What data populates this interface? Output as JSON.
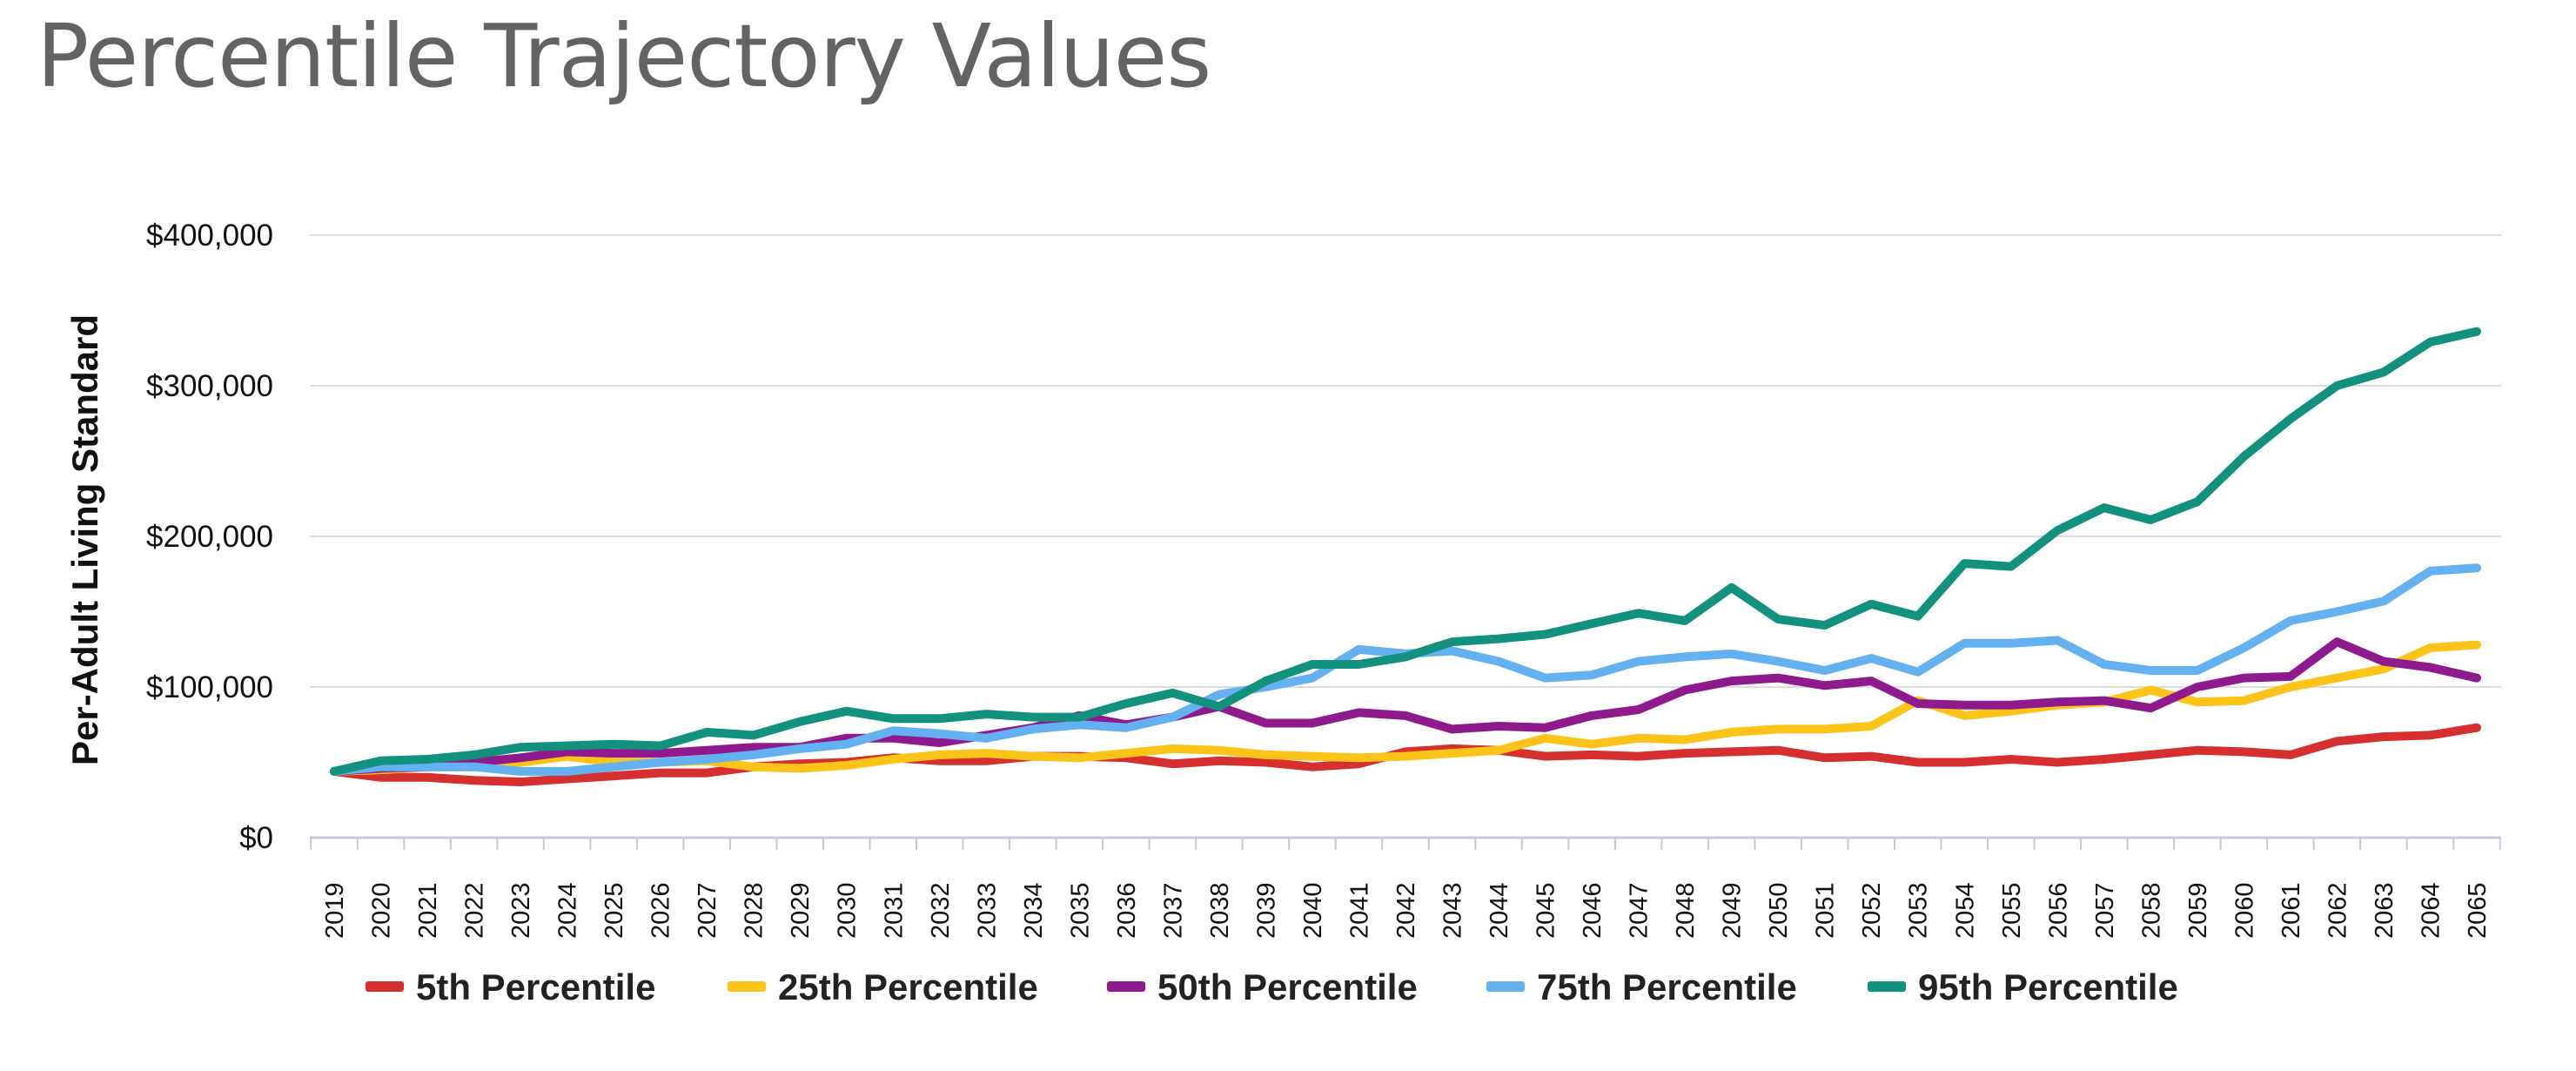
{
  "title": "Percentile Trajectory Values",
  "chart_data": {
    "type": "line",
    "title": "Percentile Trajectory Values",
    "ylabel": "Per-Adult Living Standard",
    "xlabel": "",
    "ylim": [
      0,
      400000
    ],
    "yticks": [
      0,
      100000,
      200000,
      300000,
      400000
    ],
    "ytick_labels": [
      "$0",
      "$100,000",
      "$200,000",
      "$300,000",
      "$400,000"
    ],
    "grid": true,
    "legend_position": "bottom",
    "x": [
      "2019",
      "2020",
      "2021",
      "2022",
      "2023",
      "2024",
      "2025",
      "2026",
      "2027",
      "2028",
      "2029",
      "2030",
      "2031",
      "2032",
      "2033",
      "2034",
      "2035",
      "2036",
      "2037",
      "2038",
      "2039",
      "2040",
      "2041",
      "2042",
      "2043",
      "2044",
      "2045",
      "2046",
      "2047",
      "2048",
      "2049",
      "2050",
      "2051",
      "2052",
      "2053",
      "2054",
      "2055",
      "2056",
      "2057",
      "2058",
      "2059",
      "2060",
      "2061",
      "2062",
      "2063",
      "2064",
      "2065"
    ],
    "series": [
      {
        "name": "5th Percentile",
        "color": "#d62f2f",
        "values": [
          44000,
          40000,
          40000,
          38000,
          37000,
          39000,
          41000,
          43000,
          43000,
          47000,
          49000,
          50000,
          53000,
          51000,
          51000,
          54000,
          54000,
          53000,
          49000,
          51000,
          50000,
          47000,
          49000,
          57000,
          59000,
          58000,
          54000,
          55000,
          54000,
          56000,
          57000,
          58000,
          53000,
          54000,
          50000,
          50000,
          52000,
          50000,
          52000,
          55000,
          58000,
          57000,
          55000,
          64000,
          67000,
          68000,
          73000
        ]
      },
      {
        "name": "25th Percentile",
        "color": "#fcc419",
        "values": [
          44000,
          45000,
          47000,
          47000,
          50000,
          54000,
          50000,
          50000,
          51000,
          47000,
          46000,
          48000,
          52000,
          55000,
          56000,
          54000,
          53000,
          56000,
          59000,
          58000,
          55000,
          54000,
          53000,
          54000,
          56000,
          58000,
          66000,
          62000,
          66000,
          65000,
          70000,
          72000,
          72000,
          74000,
          91000,
          81000,
          84000,
          88000,
          90000,
          98000,
          90000,
          91000,
          100000,
          106000,
          112000,
          126000,
          128000
        ]
      },
      {
        "name": "50th Percentile",
        "color": "#8e1a8e",
        "values": [
          44000,
          46000,
          47000,
          50000,
          53000,
          57000,
          56000,
          56000,
          58000,
          60000,
          60000,
          66000,
          66000,
          63000,
          68000,
          73000,
          81000,
          75000,
          80000,
          87000,
          76000,
          76000,
          83000,
          81000,
          72000,
          74000,
          73000,
          81000,
          85000,
          98000,
          104000,
          106000,
          101000,
          104000,
          89000,
          88000,
          88000,
          90000,
          91000,
          86000,
          100000,
          106000,
          107000,
          130000,
          117000,
          113000,
          106000
        ]
      },
      {
        "name": "75th Percentile",
        "color": "#63b1f0",
        "values": [
          44000,
          47000,
          47000,
          47000,
          44000,
          44000,
          47000,
          50000,
          52000,
          55000,
          59000,
          62000,
          71000,
          69000,
          66000,
          72000,
          75000,
          73000,
          80000,
          95000,
          100000,
          106000,
          125000,
          122000,
          124000,
          117000,
          106000,
          108000,
          117000,
          120000,
          122000,
          117000,
          111000,
          119000,
          110000,
          129000,
          129000,
          131000,
          115000,
          111000,
          111000,
          126000,
          144000,
          150000,
          157000,
          177000,
          179000
        ]
      },
      {
        "name": "95th Percentile",
        "color": "#12917f",
        "values": [
          44000,
          51000,
          52000,
          55000,
          60000,
          61000,
          62000,
          61000,
          70000,
          68000,
          77000,
          84000,
          79000,
          79000,
          82000,
          80000,
          80000,
          89000,
          96000,
          87000,
          104000,
          115000,
          115000,
          120000,
          130000,
          132000,
          135000,
          142000,
          149000,
          144000,
          166000,
          145000,
          141000,
          155000,
          147000,
          182000,
          180000,
          204000,
          219000,
          211000,
          223000,
          253000,
          278000,
          300000,
          309000,
          329000,
          336000
        ]
      }
    ]
  }
}
